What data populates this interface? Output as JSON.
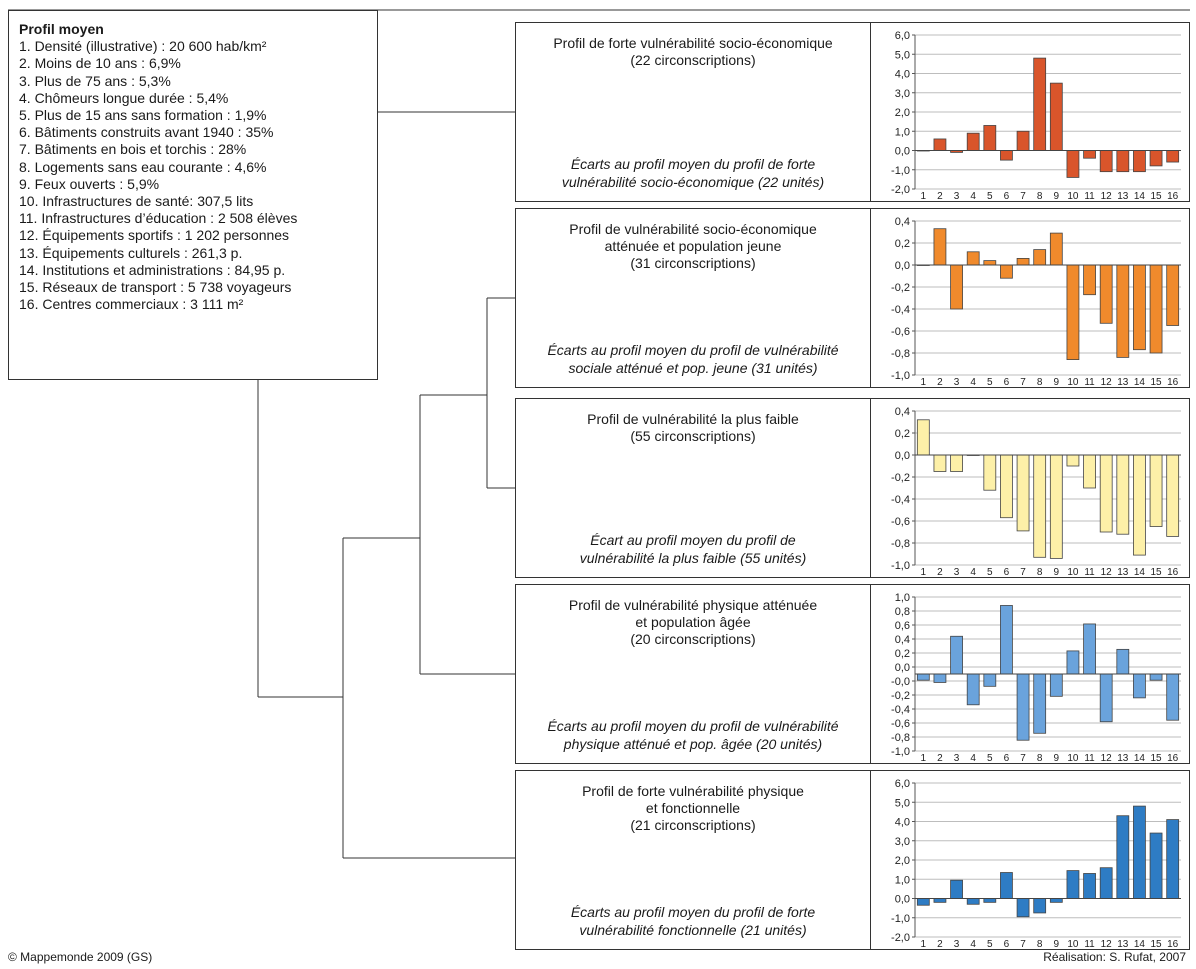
{
  "legend": {
    "title": "Profil moyen",
    "items": [
      "1. Densité (illustrative) : 20 600 hab/km²",
      "2. Moins de 10 ans : 6,9%",
      "3. Plus de 75 ans : 5,3%",
      "4. Chômeurs longue durée : 5,4%",
      "5. Plus de 15 ans sans formation : 1,9%",
      "6. Bâtiments construits avant 1940 : 35%",
      "7. Bâtiments en bois et torchis : 28%",
      "8. Logements sans eau courante : 4,6%",
      "9. Feux ouverts : 5,9%",
      "10. Infrastructures de santé: 307,5 lits",
      "11. Infrastructures d’éducation : 2 508 élèves",
      "12. Équipements sportifs : 1 202 personnes",
      "13. Équipements culturels : 261,3 p.",
      "14. Institutions et administrations : 84,95 p.",
      "15. Réseaux de transport : 5 738 voyageurs",
      "16. Centres commerciaux : 3 111 m²"
    ]
  },
  "profiles": [
    {
      "title": "Profil de forte vulnérabilité socio-économique\n(22 circonscriptions)",
      "subtitle": "Écarts au profil moyen du profil de forte\nvulnérabilité socio-économique (22 unités)"
    },
    {
      "title": "Profil de vulnérabilité socio-économique\natténuée et population jeune\n(31 circonscriptions)",
      "subtitle": "Écarts au profil moyen du profil de vulnérabilité\nsociale atténué et pop. jeune (31 unités)"
    },
    {
      "title": "Profil de vulnérabilité la plus faible\n(55 circonscriptions)",
      "subtitle": "Écart au profil moyen du profil de\nvulnérabilité la plus faible (55 unités)"
    },
    {
      "title": "Profil de vulnérabilité physique atténuée\net population âgée\n(20 circonscriptions)",
      "subtitle": "Écarts au profil moyen du profil de vulnérabilité\nphysique atténué et pop. âgée (20 unités)"
    },
    {
      "title": "Profil de forte vulnérabilité physique\net fonctionnelle\n(21 circonscriptions)",
      "subtitle": "Écarts au profil moyen du profil de forte\nvulnérabilité fonctionnelle (21 unités)"
    }
  ],
  "chart_data": [
    {
      "type": "bar",
      "categories": [
        "1",
        "2",
        "3",
        "4",
        "5",
        "6",
        "7",
        "8",
        "9",
        "10",
        "11",
        "12",
        "13",
        "14",
        "15",
        "16"
      ],
      "values": [
        0.0,
        0.6,
        -0.1,
        0.9,
        1.3,
        -0.5,
        1.0,
        4.8,
        3.5,
        -1.4,
        -0.4,
        -1.1,
        -1.1,
        -1.1,
        -0.8,
        -0.6
      ],
      "ylim": [
        -2.0,
        6.0
      ],
      "yticks": [
        "6,0",
        "5,0",
        "4,0",
        "3,0",
        "2,0",
        "1,0",
        "0,0",
        "-1,0",
        "-2,0"
      ],
      "color": "#d9552b",
      "grid": true
    },
    {
      "type": "bar",
      "categories": [
        "1",
        "2",
        "3",
        "4",
        "5",
        "6",
        "7",
        "8",
        "9",
        "10",
        "11",
        "12",
        "13",
        "14",
        "15",
        "16"
      ],
      "values": [
        0.0,
        0.33,
        -0.4,
        0.12,
        0.04,
        -0.12,
        0.06,
        0.14,
        0.29,
        -0.86,
        -0.27,
        -0.53,
        -0.84,
        -0.77,
        -0.8,
        -0.55
      ],
      "ylim": [
        -1.0,
        0.4
      ],
      "yticks": [
        "0,4",
        "0,2",
        "0,0",
        "-0,2",
        "-0,4",
        "-0,6",
        "-0,8",
        "-1,0"
      ],
      "color": "#f08a2c",
      "grid": true
    },
    {
      "type": "bar",
      "categories": [
        "1",
        "2",
        "3",
        "4",
        "5",
        "6",
        "7",
        "8",
        "9",
        "10",
        "11",
        "12",
        "13",
        "14",
        "15",
        "16"
      ],
      "values": [
        0.32,
        -0.15,
        -0.15,
        0.0,
        -0.32,
        -0.57,
        -0.69,
        -0.93,
        -0.94,
        -0.1,
        -0.3,
        -0.7,
        -0.72,
        -0.91,
        -0.65,
        -0.74
      ],
      "ylim": [
        -1.0,
        0.4
      ],
      "yticks": [
        "0,4",
        "0,2",
        "0,0",
        "-0,2",
        "-0,4",
        "-0,6",
        "-0,8",
        "-1,0"
      ],
      "color": "#fdf0a8",
      "grid": true
    },
    {
      "type": "bar",
      "categories": [
        "1",
        "2",
        "3",
        "4",
        "5",
        "6",
        "7",
        "8",
        "9",
        "10",
        "11",
        "12",
        "13",
        "14",
        "15",
        "16"
      ],
      "values": [
        -0.08,
        -0.11,
        0.49,
        -0.4,
        -0.16,
        0.89,
        -0.86,
        -0.77,
        -0.29,
        0.3,
        0.65,
        -0.62,
        0.32,
        -0.31,
        -0.08,
        -0.6
      ],
      "ylim": [
        -1.0,
        1.0
      ],
      "yticks": [
        "1,0",
        "0,8",
        "0,6",
        "0,4",
        "0,2",
        "0,0",
        "-0,0",
        "-0,2",
        "-0,4",
        "-0,6",
        "-0,8",
        "-1,0"
      ],
      "color": "#6aa3dc",
      "grid": true
    },
    {
      "type": "bar",
      "categories": [
        "1",
        "2",
        "3",
        "4",
        "5",
        "6",
        "7",
        "8",
        "9",
        "10",
        "11",
        "12",
        "13",
        "14",
        "15",
        "16"
      ],
      "values": [
        -0.35,
        -0.2,
        0.95,
        -0.3,
        -0.2,
        1.35,
        -0.95,
        -0.75,
        -0.2,
        1.45,
        1.3,
        1.6,
        4.3,
        4.8,
        3.4,
        4.1
      ],
      "ylim": [
        -2.0,
        6.0
      ],
      "yticks": [
        "6,0",
        "5,0",
        "4,0",
        "3,0",
        "2,0",
        "1,0",
        "0,0",
        "-1,0",
        "-2,0"
      ],
      "color": "#2e7cc4",
      "grid": true
    }
  ],
  "footer": {
    "left": "© Mappemonde 2009 (GS)",
    "right": "Réalisation: S. Rufat, 2007"
  }
}
